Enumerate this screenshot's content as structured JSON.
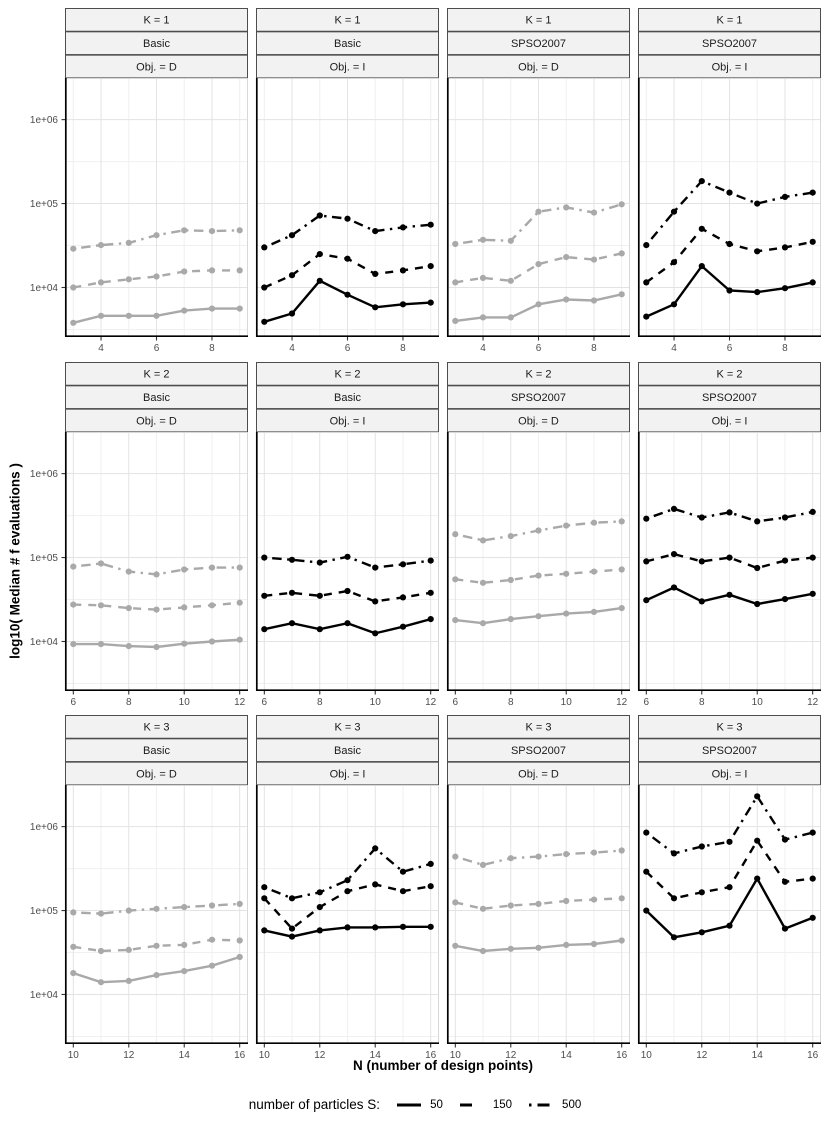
{
  "figure_title": "",
  "axes": {
    "y_title": "log10( Median # f evaluations )",
    "x_title": "N (number of design points)"
  },
  "legend": {
    "title": "number of particles S:",
    "entries": [
      {
        "label": "50",
        "linetype": "solid"
      },
      {
        "label": "150",
        "linetype": "dashed"
      },
      {
        "label": "500",
        "linetype": "dotdash"
      }
    ]
  },
  "colors": {
    "obj_D_series": "#A9A9A9",
    "obj_I_series": "#000000",
    "strip_fill": "#F2F2F2",
    "strip_border": "#4D4D4D",
    "panel_border": "#D8D8D8",
    "grid_major": "#E3E3E3",
    "grid_minor": "#F0F0F0",
    "axis_line": "#000000",
    "tick_text": "#4D4D4D",
    "strip_text": "#1A1A1A"
  },
  "chart_data": {
    "type": "line",
    "facet_layout": "3 rows (K) x 4 cols (algorithm/objective)",
    "y_axis": {
      "scale": "log10",
      "tick_labels": [
        "1e+06",
        "1e+05",
        "1e+04"
      ],
      "tick_logs": [
        6,
        5,
        4
      ],
      "minor_logs": [
        3.5,
        4.5,
        5.5
      ],
      "ylim_log10": [
        3.41,
        6.496
      ]
    },
    "rows": [
      {
        "k_label": "K = 1",
        "x": [
          3,
          4,
          5,
          6,
          7,
          8,
          9
        ],
        "major_ticks": [
          4,
          6,
          8
        ],
        "minor_ticks": [
          3,
          5,
          7,
          9
        ]
      },
      {
        "k_label": "K = 2",
        "x": [
          6,
          7,
          8,
          9,
          10,
          11,
          12
        ],
        "major_ticks": [
          6,
          8,
          10,
          12
        ],
        "minor_ticks": [
          7,
          9,
          11
        ]
      },
      {
        "k_label": "K = 3",
        "x": [
          10,
          11,
          12,
          13,
          14,
          15,
          16
        ],
        "major_ticks": [
          10,
          12,
          14,
          16
        ],
        "minor_ticks": [
          11,
          13,
          15
        ]
      }
    ],
    "cols": [
      {
        "algo": "Basic",
        "obj": "Obj. = D",
        "series_color": "#A9A9A9"
      },
      {
        "algo": "Basic",
        "obj": "Obj. = I",
        "series_color": "#000000"
      },
      {
        "algo": "SPSO2007",
        "obj": "Obj. = D",
        "series_color": "#A9A9A9"
      },
      {
        "algo": "SPSO2007",
        "obj": "Obj. = I",
        "series_color": "#000000"
      }
    ],
    "series_styles": [
      {
        "name": "50",
        "linetype": "solid"
      },
      {
        "name": "150",
        "linetype": "dashed"
      },
      {
        "name": "500",
        "linetype": "dotdash"
      }
    ],
    "panels": [
      {
        "row": 0,
        "col": 0,
        "series": [
          {
            "name": "50",
            "values": [
              3800,
              4600,
              4600,
              4600,
              5300,
              5600,
              5600
            ]
          },
          {
            "name": "150",
            "values": [
              10000,
              11500,
              12500,
              13500,
              15500,
              16000,
              16000
            ]
          },
          {
            "name": "500",
            "values": [
              29000,
              32000,
              34000,
              42000,
              48000,
              47000,
              48000
            ]
          }
        ]
      },
      {
        "row": 0,
        "col": 1,
        "series": [
          {
            "name": "50",
            "values": [
              3900,
              4900,
              12000,
              8200,
              5800,
              6300,
              6600
            ]
          },
          {
            "name": "150",
            "values": [
              10000,
              14000,
              25000,
              22000,
              14500,
              16000,
              18000
            ]
          },
          {
            "name": "500",
            "values": [
              30000,
              42000,
              72000,
              66000,
              47000,
              52000,
              56000
            ]
          }
        ]
      },
      {
        "row": 0,
        "col": 2,
        "series": [
          {
            "name": "50",
            "values": [
              4000,
              4400,
              4400,
              6300,
              7200,
              7000,
              8300
            ]
          },
          {
            "name": "150",
            "values": [
              11500,
              13000,
              12000,
              19000,
              23000,
              21500,
              25500
            ]
          },
          {
            "name": "500",
            "values": [
              33000,
              37000,
              36000,
              80000,
              90000,
              78000,
              98000
            ]
          }
        ]
      },
      {
        "row": 0,
        "col": 3,
        "series": [
          {
            "name": "50",
            "values": [
              4500,
              6300,
              18000,
              9200,
              8800,
              9800,
              11500
            ]
          },
          {
            "name": "150",
            "values": [
              11500,
              20000,
              50000,
              33000,
              27000,
              30000,
              35000
            ]
          },
          {
            "name": "500",
            "values": [
              32000,
              80000,
              185000,
              135000,
              100000,
              120000,
              135000
            ]
          }
        ]
      },
      {
        "row": 1,
        "col": 0,
        "series": [
          {
            "name": "50",
            "values": [
              9300,
              9300,
              8800,
              8600,
              9400,
              10000,
              10500
            ]
          },
          {
            "name": "150",
            "values": [
              27500,
              27000,
              25000,
              24000,
              25500,
              27000,
              29000
            ]
          },
          {
            "name": "500",
            "values": [
              78000,
              85000,
              68000,
              63000,
              72000,
              76000,
              76000
            ]
          }
        ]
      },
      {
        "row": 1,
        "col": 1,
        "series": [
          {
            "name": "50",
            "values": [
              14000,
              16500,
              14000,
              16500,
              12500,
              15000,
              18500
            ]
          },
          {
            "name": "150",
            "values": [
              35000,
              38000,
              35000,
              40000,
              30000,
              33500,
              38000
            ]
          },
          {
            "name": "500",
            "values": [
              100000,
              94000,
              87000,
              102000,
              76000,
              83000,
              92000
            ]
          }
        ]
      },
      {
        "row": 1,
        "col": 2,
        "series": [
          {
            "name": "50",
            "values": [
              18000,
              16500,
              18500,
              20000,
              21500,
              22500,
              25000
            ]
          },
          {
            "name": "150",
            "values": [
              55000,
              50000,
              54000,
              61000,
              64000,
              68000,
              72000
            ]
          },
          {
            "name": "500",
            "values": [
              190000,
              160000,
              180000,
              210000,
              240000,
              260000,
              270000
            ]
          }
        ]
      },
      {
        "row": 1,
        "col": 3,
        "series": [
          {
            "name": "50",
            "values": [
              31000,
              44000,
              30000,
              36000,
              28000,
              32000,
              37000
            ]
          },
          {
            "name": "150",
            "values": [
              90000,
              110000,
              90000,
              100000,
              75000,
              92000,
              100000
            ]
          },
          {
            "name": "500",
            "values": [
              290000,
              380000,
              300000,
              345000,
              270000,
              300000,
              350000
            ]
          }
        ]
      },
      {
        "row": 2,
        "col": 0,
        "series": [
          {
            "name": "50",
            "values": [
              18000,
              14000,
              14500,
              17000,
              19000,
              22000,
              28000
            ]
          },
          {
            "name": "150",
            "values": [
              37000,
              33000,
              34000,
              38000,
              39000,
              45000,
              44000
            ]
          },
          {
            "name": "500",
            "values": [
              95000,
              92000,
              100000,
              105000,
              110000,
              115000,
              120000
            ]
          }
        ]
      },
      {
        "row": 2,
        "col": 1,
        "series": [
          {
            "name": "50",
            "values": [
              58000,
              49000,
              58000,
              63000,
              63000,
              64000,
              64000
            ]
          },
          {
            "name": "150",
            "values": [
              140000,
              61000,
              110000,
              170000,
              205000,
              170000,
              195000
            ]
          },
          {
            "name": "500",
            "values": [
              190000,
              140000,
              165000,
              230000,
              550000,
              290000,
              360000
            ]
          }
        ]
      },
      {
        "row": 2,
        "col": 2,
        "series": [
          {
            "name": "50",
            "values": [
              38000,
              33000,
              35000,
              36000,
              39000,
              40000,
              44000
            ]
          },
          {
            "name": "150",
            "values": [
              125000,
              105000,
              115000,
              120000,
              130000,
              135000,
              140000
            ]
          },
          {
            "name": "500",
            "values": [
              440000,
              350000,
              420000,
              440000,
              470000,
              490000,
              520000
            ]
          }
        ]
      },
      {
        "row": 2,
        "col": 3,
        "series": [
          {
            "name": "50",
            "values": [
              100000,
              48000,
              55000,
              66000,
              240000,
              61000,
              82000
            ]
          },
          {
            "name": "150",
            "values": [
              290000,
              140000,
              165000,
              190000,
              680000,
              220000,
              240000
            ]
          },
          {
            "name": "500",
            "values": [
              850000,
              480000,
              580000,
              660000,
              2300000,
              700000,
              850000
            ]
          }
        ]
      }
    ]
  }
}
